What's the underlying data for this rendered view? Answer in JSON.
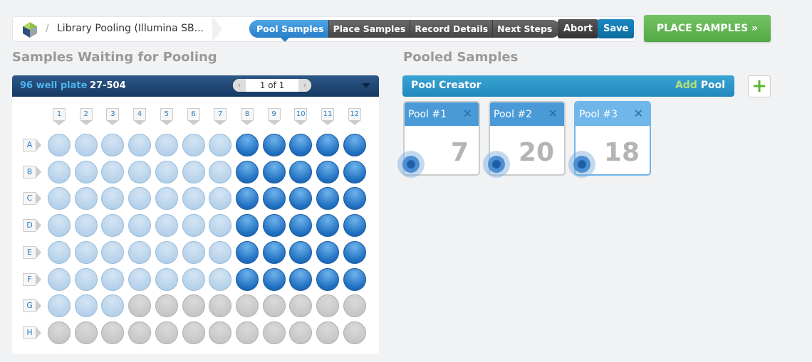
{
  "header": {
    "breadcrumb": "Library Pooling (Illumina SB...",
    "separator": "/",
    "steps": [
      "Pool Samples",
      "Place Samples",
      "Record Details",
      "Next Steps"
    ],
    "active_step": "Pool Samples",
    "abort_label": "Abort",
    "save_label": "Save",
    "place_label": "PLACE SAMPLES »"
  },
  "left": {
    "title": "Samples Waiting for Pooling",
    "plate_type": "96 well plate",
    "plate_id": "27-504",
    "pager": "1 of 1",
    "prev": "‹",
    "next": "›",
    "columns": [
      "1",
      "2",
      "3",
      "4",
      "5",
      "6",
      "7",
      "8",
      "9",
      "10",
      "11",
      "12"
    ],
    "rows": [
      "A",
      "B",
      "C",
      "D",
      "E",
      "F",
      "G",
      "H"
    ],
    "wells": [
      "LLLLLLLDDDDD",
      "LLLLLLLDDDDD",
      "LLLLLLLDDDDD",
      "LLLLLLLDDDDD",
      "LLLLLLLDDDDD",
      "LLLLLLLDDDDD",
      "LLLEEEEEEEEE",
      "EEEEEEEEEEEE"
    ],
    "legend_states": {
      "L": "waiting",
      "D": "pooled",
      "E": "empty"
    }
  },
  "right": {
    "title": "Pooled Samples",
    "creator": "Pool Creator",
    "add_word": "Add",
    "pool_word": "Pool",
    "plus": "+",
    "pools": [
      {
        "name": "Pool #1",
        "count": "7"
      },
      {
        "name": "Pool #2",
        "count": "20"
      },
      {
        "name": "Pool #3",
        "count": "18",
        "selected": true
      }
    ]
  },
  "colors": {
    "accent": "#2a7fc8",
    "green": "#5ab435",
    "plate_bar": "#1f4a78"
  }
}
